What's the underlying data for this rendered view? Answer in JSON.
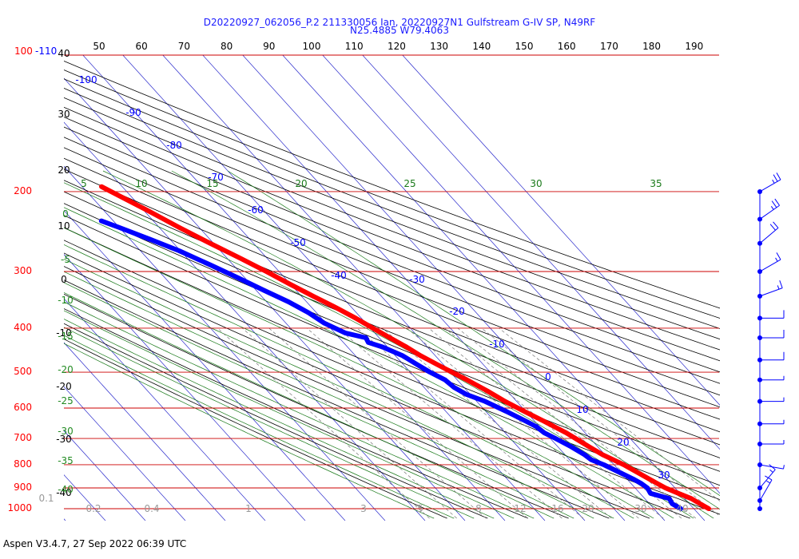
{
  "chart_data": {
    "type": "skew-t log-p",
    "title": "D20220927_062056_P.2 211330056 Ian, 20220927N1 Gulfstream G-IV SP, N49RF",
    "subtitle": "N25.4885 W79.4063",
    "pressure_labels": [
      {
        "p": 100,
        "text": "100-110"
      },
      {
        "p": 200,
        "text": "200"
      },
      {
        "p": 300,
        "text": "300"
      },
      {
        "p": 400,
        "text": "400"
      },
      {
        "p": 500,
        "text": "500"
      },
      {
        "p": 600,
        "text": "600"
      },
      {
        "p": 700,
        "text": "700"
      },
      {
        "p": 800,
        "text": "800"
      },
      {
        "p": 900,
        "text": "900"
      },
      {
        "p": 1000,
        "text": "1000"
      }
    ],
    "top_temperature_ticks": [
      "50",
      "60",
      "70",
      "80",
      "90",
      "100",
      "110",
      "120",
      "130",
      "140",
      "150",
      "160",
      "170",
      "180",
      "190"
    ],
    "left_column_labels": [
      {
        "text": "40",
        "row": 67
      },
      {
        "text": "30",
        "row": 143
      },
      {
        "text": "20",
        "row": 213
      },
      {
        "text": "10",
        "row": 283
      },
      {
        "text": "0",
        "row": 350
      },
      {
        "text": "-10",
        "row": 417
      },
      {
        "text": "-20",
        "row": 484
      },
      {
        "text": "-30",
        "row": 550
      },
      {
        "text": "-40",
        "row": 617
      }
    ],
    "isotherm_labels": [
      "-100",
      "-90",
      "-80",
      "-70",
      "-60",
      "-50",
      "-40",
      "-30",
      "-20",
      "-10",
      "0",
      "10",
      "20",
      "30"
    ],
    "moist_adiabat_labels": [
      "5",
      "10",
      "15",
      "20",
      "25",
      "30",
      "35"
    ],
    "theta_e_left_labels": [
      "0",
      "-5",
      "-10",
      "-15",
      "-20",
      "-25",
      "-30",
      "-35",
      "-40"
    ],
    "mixing_ratio_labels": [
      "0.1",
      "0.2",
      "0.4",
      "1",
      "3",
      "5",
      "8",
      "12",
      "16",
      "20",
      "30",
      "40"
    ],
    "series": [
      {
        "name": "Temperature",
        "color": "#ff0000",
        "points": [
          {
            "p": 1000,
            "t": 31
          },
          {
            "p": 975,
            "t": 30
          },
          {
            "p": 950,
            "t": 29
          },
          {
            "p": 925,
            "t": 27
          },
          {
            "p": 900,
            "t": 25
          },
          {
            "p": 880,
            "t": 24
          },
          {
            "p": 860,
            "t": 23
          },
          {
            "p": 830,
            "t": 21.5
          },
          {
            "p": 800,
            "t": 20
          },
          {
            "p": 780,
            "t": 18.5
          },
          {
            "p": 760,
            "t": 17
          },
          {
            "p": 730,
            "t": 15.5
          },
          {
            "p": 700,
            "t": 14
          },
          {
            "p": 680,
            "t": 13
          },
          {
            "p": 660,
            "t": 11.5
          },
          {
            "p": 640,
            "t": 10
          },
          {
            "p": 610,
            "t": 7.5
          },
          {
            "p": 580,
            "t": 5
          },
          {
            "p": 550,
            "t": 3
          },
          {
            "p": 520,
            "t": 0.5
          },
          {
            "p": 500,
            "t": -1.5
          },
          {
            "p": 480,
            "t": -3.5
          },
          {
            "p": 460,
            "t": -5.5
          },
          {
            "p": 440,
            "t": -7
          },
          {
            "p": 420,
            "t": -9
          },
          {
            "p": 400,
            "t": -11
          },
          {
            "p": 380,
            "t": -13
          },
          {
            "p": 360,
            "t": -15.5
          },
          {
            "p": 340,
            "t": -18.5
          },
          {
            "p": 320,
            "t": -21.5
          },
          {
            "p": 300,
            "t": -24.5
          },
          {
            "p": 280,
            "t": -28
          },
          {
            "p": 260,
            "t": -32
          },
          {
            "p": 240,
            "t": -36
          },
          {
            "p": 220,
            "t": -40
          },
          {
            "p": 205,
            "t": -43.5
          },
          {
            "p": 195,
            "t": -46
          }
        ]
      },
      {
        "name": "Dew point",
        "color": "#0000ff",
        "points": [
          {
            "p": 1000,
            "t": 24
          },
          {
            "p": 975,
            "t": 23
          },
          {
            "p": 950,
            "t": 23.5
          },
          {
            "p": 925,
            "t": 20
          },
          {
            "p": 900,
            "t": 20.5
          },
          {
            "p": 880,
            "t": 20
          },
          {
            "p": 860,
            "t": 19
          },
          {
            "p": 830,
            "t": 17
          },
          {
            "p": 800,
            "t": 15
          },
          {
            "p": 780,
            "t": 13
          },
          {
            "p": 760,
            "t": 12.5
          },
          {
            "p": 730,
            "t": 11
          },
          {
            "p": 700,
            "t": 9
          },
          {
            "p": 680,
            "t": 7.5
          },
          {
            "p": 660,
            "t": 7
          },
          {
            "p": 640,
            "t": 5.5
          },
          {
            "p": 610,
            "t": 3
          },
          {
            "p": 580,
            "t": 0
          },
          {
            "p": 560,
            "t": -3
          },
          {
            "p": 540,
            "t": -4.5
          },
          {
            "p": 520,
            "t": -5
          },
          {
            "p": 500,
            "t": -7
          },
          {
            "p": 480,
            "t": -8.5
          },
          {
            "p": 460,
            "t": -10
          },
          {
            "p": 440,
            "t": -13
          },
          {
            "p": 430,
            "t": -15.5
          },
          {
            "p": 420,
            "t": -15
          },
          {
            "p": 410,
            "t": -19
          },
          {
            "p": 390,
            "t": -22
          },
          {
            "p": 370,
            "t": -23.5
          },
          {
            "p": 350,
            "t": -26
          },
          {
            "p": 330,
            "t": -29.5
          },
          {
            "p": 310,
            "t": -33
          },
          {
            "p": 290,
            "t": -37
          },
          {
            "p": 270,
            "t": -41.5
          },
          {
            "p": 255,
            "t": -46
          },
          {
            "p": 240,
            "t": -51
          },
          {
            "p": 232,
            "t": -54
          }
        ]
      }
    ],
    "wind_barbs": [
      {
        "p": 200,
        "speed": 25,
        "dir": 240
      },
      {
        "p": 230,
        "speed": 25,
        "dir": 235
      },
      {
        "p": 260,
        "speed": 20,
        "dir": 230
      },
      {
        "p": 300,
        "speed": 15,
        "dir": 240
      },
      {
        "p": 340,
        "speed": 15,
        "dir": 250
      },
      {
        "p": 380,
        "speed": 10,
        "dir": 270
      },
      {
        "p": 420,
        "speed": 10,
        "dir": 270
      },
      {
        "p": 470,
        "speed": 10,
        "dir": 270
      },
      {
        "p": 520,
        "speed": 5,
        "dir": 270
      },
      {
        "p": 580,
        "speed": 5,
        "dir": 270
      },
      {
        "p": 650,
        "speed": 5,
        "dir": 270
      },
      {
        "p": 720,
        "speed": 5,
        "dir": 270
      },
      {
        "p": 800,
        "speed": 5,
        "dir": 280
      },
      {
        "p": 900,
        "speed": 15,
        "dir": 220
      },
      {
        "p": 960,
        "speed": 15,
        "dir": 210
      },
      {
        "p": 1000,
        "speed": 0,
        "dir": 0
      }
    ],
    "colors": {
      "isotherm": "#2a2acc",
      "pressure": "#cc0000",
      "dry_adiabat": "#000000",
      "moist_adiabat": "#1a7a1a",
      "mixing_ratio": "#777777",
      "left_red": "#ff0000",
      "left_blue": "#0000ff",
      "left_green": "#228b22"
    }
  },
  "footer": "Aspen V3.4.7, 27 Sep 2022  06:39 UTC"
}
